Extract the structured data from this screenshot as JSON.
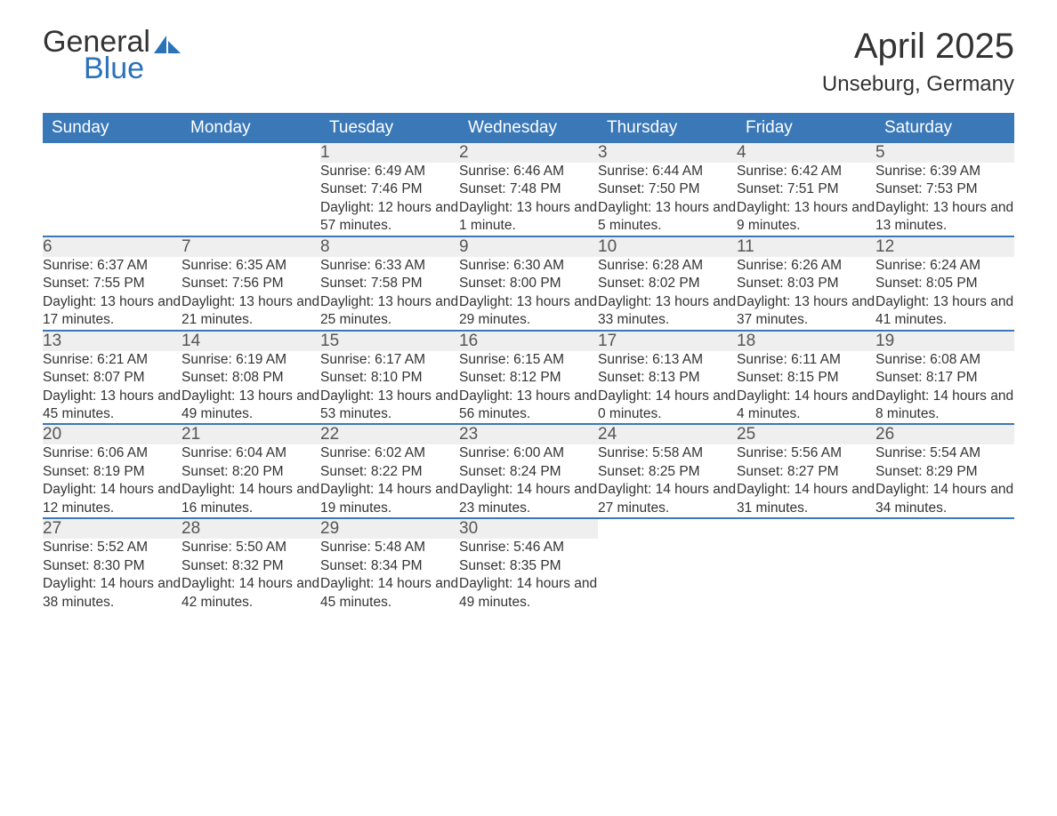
{
  "brand": {
    "line1": "General",
    "line2": "Blue"
  },
  "title": "April 2025",
  "location": "Unseburg, Germany",
  "colors": {
    "header_bg": "#3b78b8",
    "header_text": "#ffffff",
    "daynum_bg": "#efefef",
    "row_border": "#3b78b8",
    "text": "#333333",
    "brand_blue": "#2b72b9",
    "background": "#ffffff"
  },
  "typography": {
    "month_title_size": 40,
    "location_size": 24,
    "weekday_size": 19,
    "daynum_size": 19,
    "detail_size": 15.5
  },
  "weekdays": [
    "Sunday",
    "Monday",
    "Tuesday",
    "Wednesday",
    "Thursday",
    "Friday",
    "Saturday"
  ],
  "weeks": [
    [
      null,
      null,
      {
        "n": "1",
        "sr": "6:49 AM",
        "ss": "7:46 PM",
        "dl": "12 hours and 57 minutes."
      },
      {
        "n": "2",
        "sr": "6:46 AM",
        "ss": "7:48 PM",
        "dl": "13 hours and 1 minute."
      },
      {
        "n": "3",
        "sr": "6:44 AM",
        "ss": "7:50 PM",
        "dl": "13 hours and 5 minutes."
      },
      {
        "n": "4",
        "sr": "6:42 AM",
        "ss": "7:51 PM",
        "dl": "13 hours and 9 minutes."
      },
      {
        "n": "5",
        "sr": "6:39 AM",
        "ss": "7:53 PM",
        "dl": "13 hours and 13 minutes."
      }
    ],
    [
      {
        "n": "6",
        "sr": "6:37 AM",
        "ss": "7:55 PM",
        "dl": "13 hours and 17 minutes."
      },
      {
        "n": "7",
        "sr": "6:35 AM",
        "ss": "7:56 PM",
        "dl": "13 hours and 21 minutes."
      },
      {
        "n": "8",
        "sr": "6:33 AM",
        "ss": "7:58 PM",
        "dl": "13 hours and 25 minutes."
      },
      {
        "n": "9",
        "sr": "6:30 AM",
        "ss": "8:00 PM",
        "dl": "13 hours and 29 minutes."
      },
      {
        "n": "10",
        "sr": "6:28 AM",
        "ss": "8:02 PM",
        "dl": "13 hours and 33 minutes."
      },
      {
        "n": "11",
        "sr": "6:26 AM",
        "ss": "8:03 PM",
        "dl": "13 hours and 37 minutes."
      },
      {
        "n": "12",
        "sr": "6:24 AM",
        "ss": "8:05 PM",
        "dl": "13 hours and 41 minutes."
      }
    ],
    [
      {
        "n": "13",
        "sr": "6:21 AM",
        "ss": "8:07 PM",
        "dl": "13 hours and 45 minutes."
      },
      {
        "n": "14",
        "sr": "6:19 AM",
        "ss": "8:08 PM",
        "dl": "13 hours and 49 minutes."
      },
      {
        "n": "15",
        "sr": "6:17 AM",
        "ss": "8:10 PM",
        "dl": "13 hours and 53 minutes."
      },
      {
        "n": "16",
        "sr": "6:15 AM",
        "ss": "8:12 PM",
        "dl": "13 hours and 56 minutes."
      },
      {
        "n": "17",
        "sr": "6:13 AM",
        "ss": "8:13 PM",
        "dl": "14 hours and 0 minutes."
      },
      {
        "n": "18",
        "sr": "6:11 AM",
        "ss": "8:15 PM",
        "dl": "14 hours and 4 minutes."
      },
      {
        "n": "19",
        "sr": "6:08 AM",
        "ss": "8:17 PM",
        "dl": "14 hours and 8 minutes."
      }
    ],
    [
      {
        "n": "20",
        "sr": "6:06 AM",
        "ss": "8:19 PM",
        "dl": "14 hours and 12 minutes."
      },
      {
        "n": "21",
        "sr": "6:04 AM",
        "ss": "8:20 PM",
        "dl": "14 hours and 16 minutes."
      },
      {
        "n": "22",
        "sr": "6:02 AM",
        "ss": "8:22 PM",
        "dl": "14 hours and 19 minutes."
      },
      {
        "n": "23",
        "sr": "6:00 AM",
        "ss": "8:24 PM",
        "dl": "14 hours and 23 minutes."
      },
      {
        "n": "24",
        "sr": "5:58 AM",
        "ss": "8:25 PM",
        "dl": "14 hours and 27 minutes."
      },
      {
        "n": "25",
        "sr": "5:56 AM",
        "ss": "8:27 PM",
        "dl": "14 hours and 31 minutes."
      },
      {
        "n": "26",
        "sr": "5:54 AM",
        "ss": "8:29 PM",
        "dl": "14 hours and 34 minutes."
      }
    ],
    [
      {
        "n": "27",
        "sr": "5:52 AM",
        "ss": "8:30 PM",
        "dl": "14 hours and 38 minutes."
      },
      {
        "n": "28",
        "sr": "5:50 AM",
        "ss": "8:32 PM",
        "dl": "14 hours and 42 minutes."
      },
      {
        "n": "29",
        "sr": "5:48 AM",
        "ss": "8:34 PM",
        "dl": "14 hours and 45 minutes."
      },
      {
        "n": "30",
        "sr": "5:46 AM",
        "ss": "8:35 PM",
        "dl": "14 hours and 49 minutes."
      },
      null,
      null,
      null
    ]
  ],
  "labels": {
    "sunrise": "Sunrise: ",
    "sunset": "Sunset: ",
    "daylight": "Daylight: "
  }
}
